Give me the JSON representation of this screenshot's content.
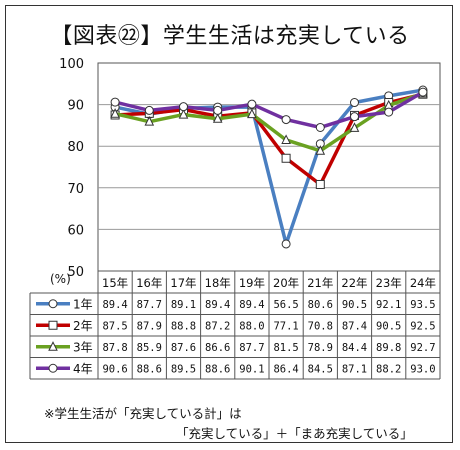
{
  "title": "【図表㉒】学生生活は充実している",
  "unit_label": "(%)",
  "note_line1": "※学生生活が「充実している計」は",
  "note_line2": "「充実している」＋「まあ充実している」",
  "chart_data": {
    "type": "line",
    "x": [
      "15年",
      "16年",
      "17年",
      "18年",
      "19年",
      "20年",
      "21年",
      "22年",
      "23年",
      "24年"
    ],
    "ylim": [
      50,
      100
    ],
    "yticks": [
      50,
      60,
      70,
      80,
      90,
      100
    ],
    "grid": true,
    "legend": "table-below",
    "series": [
      {
        "name": "1年",
        "color": "#4a7fc1",
        "marker": "circle",
        "values": [
          89.4,
          87.7,
          89.1,
          89.4,
          89.4,
          56.5,
          80.6,
          90.5,
          92.1,
          93.5
        ]
      },
      {
        "name": "2年",
        "color": "#c00000",
        "marker": "square",
        "values": [
          87.5,
          87.9,
          88.8,
          87.2,
          88.0,
          77.1,
          70.8,
          87.4,
          90.5,
          92.5
        ]
      },
      {
        "name": "3年",
        "color": "#6aa121",
        "marker": "triangle",
        "values": [
          87.8,
          85.9,
          87.6,
          86.6,
          87.7,
          81.5,
          78.9,
          84.4,
          89.8,
          92.7
        ]
      },
      {
        "name": "4年",
        "color": "#7030a0",
        "marker": "circle",
        "values": [
          90.6,
          88.6,
          89.5,
          88.6,
          90.1,
          86.4,
          84.5,
          87.1,
          88.2,
          93.0
        ]
      }
    ],
    "table_text": [
      [
        "89.4",
        "87.7",
        "89.1",
        "89.4",
        "89.4",
        "56.5",
        "80.6",
        "90.5",
        "92.1",
        "93.5"
      ],
      [
        "87.5",
        "87.9",
        "88.8",
        "87.2",
        "88.0",
        "77.1",
        "70.8",
        "87.4",
        "90.5",
        "92.5"
      ],
      [
        "87.8",
        "85.9",
        "87.6",
        "86.6",
        "87.7",
        "81.5",
        "78.9",
        "84.4",
        "89.8",
        "92.7"
      ],
      [
        "90.6",
        "88.6",
        "89.5",
        "88.6",
        "90.1",
        "86.4",
        "84.5",
        "87.1",
        "88.2",
        "93.0"
      ]
    ]
  }
}
